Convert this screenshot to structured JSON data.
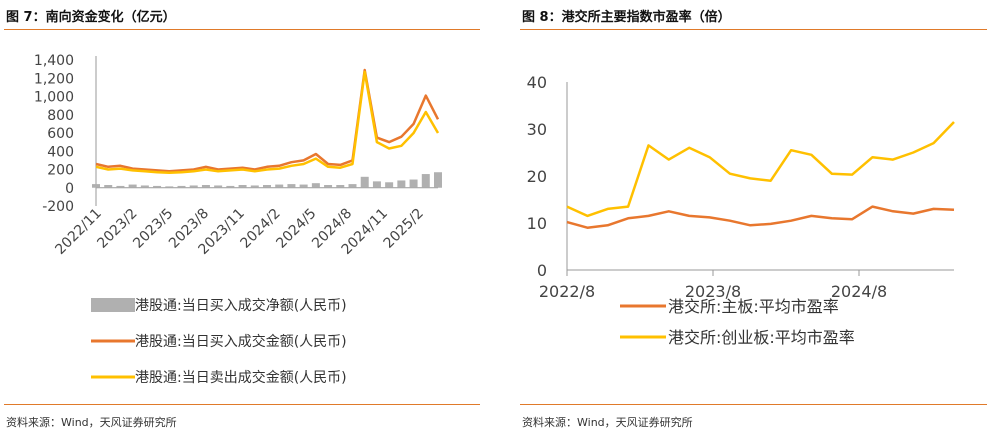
{
  "left": {
    "title": "图 7：南向资金变化（亿元）",
    "source": "资料来源：Wind，天风证券研究所"
  },
  "right": {
    "title": "图 8：港交所主要指数市盈率（倍）",
    "source": "资料来源：Wind，天风证券研究所"
  },
  "chart_data": [
    {
      "type": "line",
      "title": "图 7：南向资金变化（亿元）",
      "ylim": [
        -200,
        1400
      ],
      "yticks": [
        -200,
        0,
        200,
        400,
        600,
        800,
        1000,
        1200,
        1400
      ],
      "ytick_labels": [
        "-200",
        "0",
        "200",
        "400",
        "600",
        "800",
        "1,000",
        "1,200",
        "1,400"
      ],
      "xtick_labels": [
        "2022/11",
        "2023/2",
        "2023/5",
        "2023/8",
        "2023/11",
        "2024/2",
        "2024/5",
        "2024/8",
        "2024/11",
        "2025/2"
      ],
      "x": [
        "2022/11",
        "2022/12",
        "2023/1",
        "2023/2",
        "2023/3",
        "2023/4",
        "2023/5",
        "2023/6",
        "2023/7",
        "2023/8",
        "2023/9",
        "2023/10",
        "2023/11",
        "2023/12",
        "2024/1",
        "2024/2",
        "2024/3",
        "2024/4",
        "2024/5",
        "2024/6",
        "2024/7",
        "2024/8",
        "2024/9",
        "2024/10",
        "2024/11",
        "2024/12",
        "2025/1",
        "2025/2",
        "2025/3"
      ],
      "legend_position": "bottom",
      "series": [
        {
          "name": "港股通:当日买入成交净额(人民币)",
          "color": "#b0b0b0",
          "style": "bar",
          "values": [
            40,
            30,
            20,
            35,
            25,
            20,
            15,
            20,
            25,
            30,
            25,
            20,
            30,
            25,
            30,
            35,
            40,
            35,
            50,
            30,
            30,
            40,
            120,
            70,
            60,
            80,
            90,
            150,
            170
          ]
        },
        {
          "name": "港股通:当日买入成交金额(人民币)",
          "color": "#e8772e",
          "style": "line",
          "values": [
            260,
            230,
            240,
            210,
            200,
            190,
            180,
            190,
            200,
            230,
            200,
            210,
            220,
            200,
            230,
            240,
            280,
            300,
            370,
            260,
            250,
            300,
            1290,
            550,
            500,
            560,
            700,
            1010,
            750
          ]
        },
        {
          "name": "港股通:当日卖出成交金额(人民币)",
          "color": "#ffc000",
          "style": "line",
          "values": [
            230,
            200,
            210,
            190,
            180,
            170,
            165,
            170,
            180,
            200,
            180,
            190,
            200,
            180,
            200,
            210,
            240,
            260,
            320,
            230,
            220,
            260,
            1270,
            500,
            430,
            460,
            600,
            830,
            600
          ]
        }
      ]
    },
    {
      "type": "line",
      "title": "图 8：港交所主要指数市盈率（倍）",
      "ylim": [
        0,
        40
      ],
      "yticks": [
        0,
        10,
        20,
        30,
        40
      ],
      "xtick_labels": [
        "2022/8",
        "2023/8",
        "2024/8"
      ],
      "x": [
        "2022/8",
        "2022/10",
        "2022/12",
        "2023/2",
        "2023/4",
        "2023/5",
        "2023/7",
        "2023/8",
        "2023/10",
        "2023/12",
        "2024/2",
        "2024/3",
        "2024/4",
        "2024/6",
        "2024/8",
        "2024/9",
        "2024/10",
        "2024/12",
        "2025/2",
        "2025/3"
      ],
      "legend_position": "bottom",
      "series": [
        {
          "name": "港交所:主板:平均市盈率",
          "color": "#e8772e",
          "values": [
            10.2,
            9.0,
            9.5,
            11.0,
            11.5,
            12.5,
            11.5,
            11.2,
            10.5,
            9.5,
            9.8,
            10.5,
            11.5,
            11.0,
            10.8,
            13.5,
            12.5,
            12.0,
            13.0,
            12.8
          ]
        },
        {
          "name": "港交所:创业板:平均市盈率",
          "color": "#ffc000",
          "values": [
            13.5,
            11.5,
            13.0,
            13.5,
            26.5,
            23.5,
            26.0,
            24.0,
            20.5,
            19.5,
            19.0,
            25.5,
            24.5,
            20.5,
            20.3,
            24.0,
            23.5,
            25.0,
            27.0,
            31.5
          ]
        }
      ]
    }
  ]
}
